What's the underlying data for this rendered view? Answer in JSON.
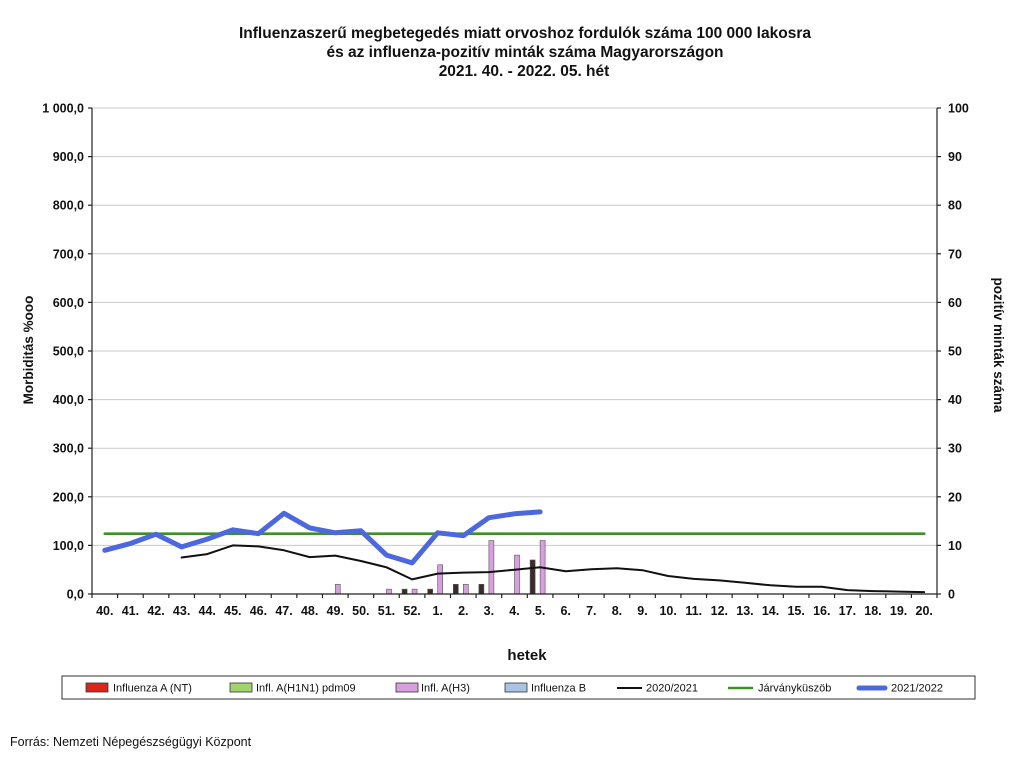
{
  "chart_data": {
    "type": "line",
    "title_lines": [
      "Influenzaszerű megbetegedés miatt orvoshoz fordulók száma 100 000 lakosra",
      "és az influenza-pozitív minták száma Magyarországon",
      "2021. 40. - 2022. 05. hét"
    ],
    "xlabel": "hetek",
    "ylabel": "Morbiditás %ooo",
    "ylabel_right": "pozitív minták száma",
    "ylim": [
      0,
      1000
    ],
    "ylim_right": [
      0,
      100
    ],
    "y_tick_labels": [
      "0,0",
      "100,0",
      "200,0",
      "300,0",
      "400,0",
      "500,0",
      "600,0",
      "700,0",
      "800,0",
      "900,0",
      "1 000,0"
    ],
    "y_right_tick_labels": [
      "0",
      "10",
      "20",
      "30",
      "40",
      "50",
      "60",
      "70",
      "80",
      "90",
      "100"
    ],
    "categories": [
      "40.",
      "41.",
      "42.",
      "43.",
      "44.",
      "45.",
      "46.",
      "47.",
      "48.",
      "49.",
      "50.",
      "51.",
      "52.",
      "1.",
      "2.",
      "3.",
      "4.",
      "5.",
      "6.",
      "7.",
      "8.",
      "9.",
      "10.",
      "11.",
      "12.",
      "13.",
      "14.",
      "15.",
      "16.",
      "17.",
      "18.",
      "19.",
      "20."
    ],
    "series": [
      {
        "name": "Influenza A (NT)",
        "type": "bar",
        "axis": "right",
        "color": "#d9261c",
        "bar_color": "#3b2c2c",
        "values": [
          0,
          0,
          0,
          0,
          0,
          0,
          0,
          0,
          0,
          0,
          0,
          0,
          1,
          1,
          2,
          2,
          0,
          7,
          null,
          null,
          null,
          null,
          null,
          null,
          null,
          null,
          null,
          null,
          null,
          null,
          null,
          null,
          null
        ]
      },
      {
        "name": "Infl. A(H1N1) pdm09",
        "type": "bar",
        "axis": "right",
        "color": "#a3d36c",
        "values": [
          0,
          0,
          0,
          0,
          0,
          0,
          0,
          0,
          0,
          0,
          0,
          0,
          0,
          0,
          0,
          0,
          0,
          0,
          null,
          null,
          null,
          null,
          null,
          null,
          null,
          null,
          null,
          null,
          null,
          null,
          null,
          null,
          null
        ]
      },
      {
        "name": "Infl. A(H3)",
        "type": "bar",
        "axis": "right",
        "color": "#d89ee0",
        "values": [
          0,
          0,
          0,
          0,
          0,
          0,
          0,
          0,
          0,
          2,
          0,
          1,
          1,
          6,
          2,
          11,
          8,
          11,
          null,
          null,
          null,
          null,
          null,
          null,
          null,
          null,
          null,
          null,
          null,
          null,
          null,
          null,
          null
        ]
      },
      {
        "name": "Influenza B",
        "type": "bar",
        "axis": "right",
        "color": "#a9c3e6",
        "values": [
          0,
          0,
          0,
          0,
          0,
          0,
          0,
          0,
          0,
          0,
          0,
          0,
          0,
          0,
          0,
          0,
          0,
          0,
          null,
          null,
          null,
          null,
          null,
          null,
          null,
          null,
          null,
          null,
          null,
          null,
          null,
          null,
          null
        ]
      },
      {
        "name": "2020/2021",
        "type": "line",
        "axis": "left",
        "color": "#111111",
        "values": [
          null,
          null,
          null,
          75,
          82,
          100,
          98,
          90,
          76,
          79,
          68,
          55,
          30,
          42,
          44,
          45,
          50,
          55,
          47,
          51,
          53,
          49,
          37,
          31,
          28,
          23,
          18,
          15,
          15,
          8,
          6,
          5,
          4
        ]
      },
      {
        "name": "Járványküszöb",
        "type": "line",
        "axis": "left",
        "color": "#3f8f24",
        "values": [
          124,
          124,
          124,
          124,
          124,
          124,
          124,
          124,
          124,
          124,
          124,
          124,
          124,
          124,
          124,
          124,
          124,
          124,
          124,
          124,
          124,
          124,
          124,
          124,
          124,
          124,
          124,
          124,
          124,
          124,
          124,
          124,
          124
        ]
      },
      {
        "name": "2021/2022",
        "type": "line",
        "axis": "left",
        "color": "#4d67de",
        "values": [
          90,
          104,
          123,
          97,
          113,
          132,
          124,
          166,
          136,
          126,
          130,
          80,
          64,
          126,
          120,
          157,
          165,
          169,
          null,
          null,
          null,
          null,
          null,
          null,
          null,
          null,
          null,
          null,
          null,
          null,
          null,
          null,
          null
        ]
      }
    ],
    "grid": true,
    "legend_position": "bottom"
  },
  "source": "Forrás: Nemzeti Népegészségügyi Központ"
}
